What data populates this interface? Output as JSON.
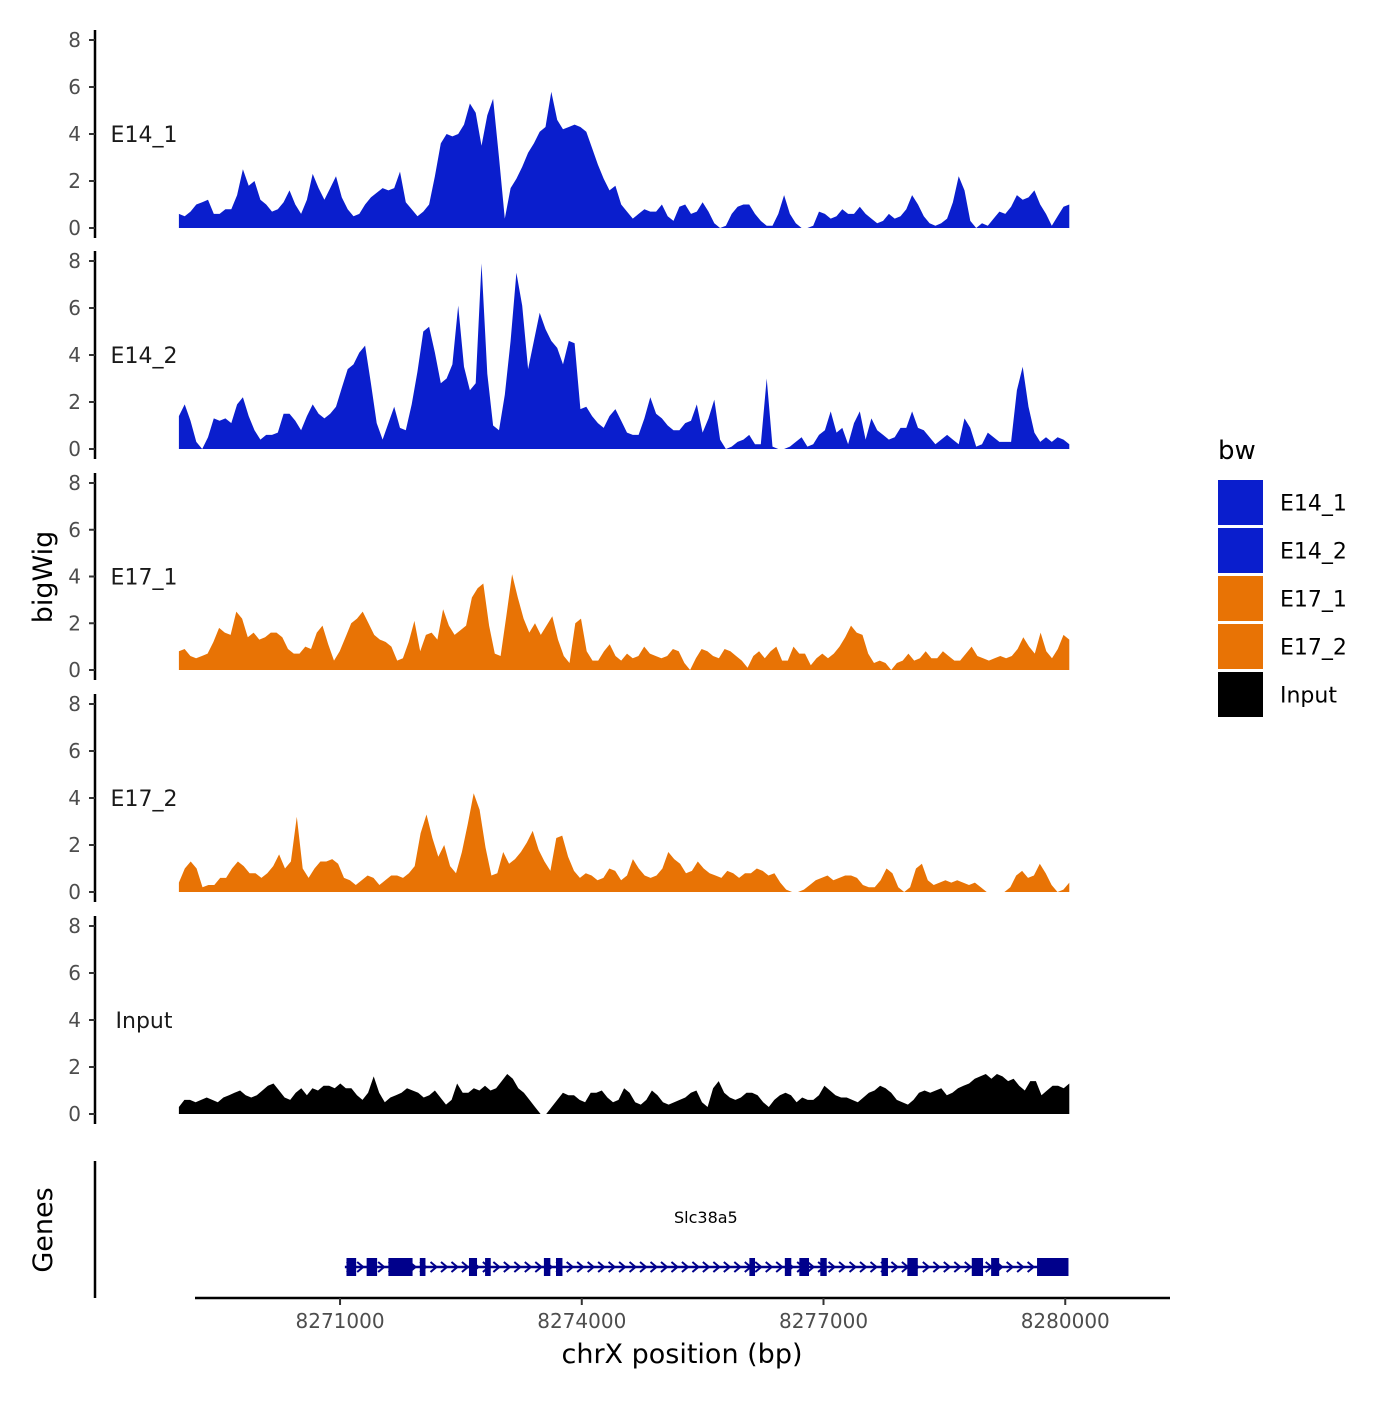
{
  "chart_data": {
    "type": "area",
    "title": "",
    "xlabel": "chrX position (bp)",
    "ylabel": "bigWig",
    "genes_label": "Genes",
    "xlim": [
      8269200,
      8281300
    ],
    "x_track_range": [
      8269000,
      8280050
    ],
    "ylim": [
      0,
      8
    ],
    "y_ticks": [
      0,
      2,
      4,
      6,
      8
    ],
    "x_ticks": [
      8271000,
      8274000,
      8277000,
      8280000
    ],
    "x_tick_labels": [
      "8271000",
      "8274000",
      "8277000",
      "8280000"
    ],
    "legend": {
      "title": "bw",
      "position": "right",
      "items": [
        {
          "label": "E14_1",
          "color": "#0A1ECD"
        },
        {
          "label": "E14_2",
          "color": "#0A1ECD"
        },
        {
          "label": "E17_1",
          "color": "#E87305"
        },
        {
          "label": "E17_2",
          "color": "#E87305"
        },
        {
          "label": "Input",
          "color": "#000000"
        }
      ]
    },
    "series": [
      {
        "name": "E14_1",
        "color": "#0A1ECD",
        "values": [
          0.6,
          0.5,
          0.7,
          1.0,
          1.1,
          1.2,
          0.6,
          0.6,
          0.8,
          0.8,
          1.4,
          2.5,
          1.8,
          2.0,
          1.2,
          1.0,
          0.7,
          0.8,
          1.1,
          1.6,
          1.0,
          0.6,
          1.2,
          2.3,
          1.7,
          1.2,
          1.7,
          2.2,
          1.3,
          0.8,
          0.5,
          0.6,
          1.0,
          1.3,
          1.5,
          1.7,
          1.6,
          1.7,
          2.4,
          1.1,
          0.8,
          0.5,
          0.7,
          1.0,
          2.2,
          3.6,
          4.0,
          3.9,
          4.0,
          4.4,
          5.3,
          4.9,
          3.5,
          4.8,
          5.5,
          3.0,
          0.4,
          1.7,
          2.1,
          2.6,
          3.2,
          3.6,
          4.1,
          4.3,
          5.8,
          4.6,
          4.2,
          4.3,
          4.4,
          4.3,
          4.1,
          3.4,
          2.7,
          2.1,
          1.6,
          1.8,
          1.0,
          0.7,
          0.4,
          0.6,
          0.8,
          0.7,
          0.7,
          1.0,
          0.5,
          0.3,
          0.9,
          1.0,
          0.6,
          0.7,
          1.1,
          0.7,
          0.2,
          0.0,
          0.1,
          0.6,
          0.9,
          1.0,
          1.0,
          0.6,
          0.3,
          0.1,
          0.1,
          0.6,
          1.4,
          0.6,
          0.2,
          0.0,
          0.0,
          0.1,
          0.7,
          0.6,
          0.4,
          0.5,
          0.8,
          0.6,
          0.6,
          0.9,
          0.6,
          0.4,
          0.2,
          0.3,
          0.6,
          0.4,
          0.5,
          0.8,
          1.4,
          1.0,
          0.5,
          0.2,
          0.1,
          0.2,
          0.4,
          1.1,
          2.2,
          1.6,
          0.3,
          0.0,
          0.2,
          0.1,
          0.4,
          0.7,
          0.6,
          0.9,
          1.4,
          1.2,
          1.3,
          1.6,
          1.0,
          0.6,
          0.1,
          0.5,
          0.9,
          1.0
        ]
      },
      {
        "name": "E14_2",
        "color": "#0A1ECD",
        "values": [
          1.4,
          1.9,
          1.2,
          0.3,
          0.0,
          0.5,
          1.3,
          1.2,
          1.3,
          1.1,
          1.9,
          2.2,
          1.4,
          0.8,
          0.4,
          0.6,
          0.6,
          0.7,
          1.5,
          1.5,
          1.2,
          0.8,
          1.4,
          1.9,
          1.5,
          1.3,
          1.5,
          1.8,
          2.6,
          3.4,
          3.6,
          4.1,
          4.4,
          2.8,
          1.1,
          0.4,
          1.1,
          1.8,
          0.9,
          0.8,
          1.9,
          3.3,
          5.0,
          5.2,
          4.1,
          2.8,
          3.0,
          3.6,
          6.1,
          3.5,
          2.5,
          2.8,
          7.9,
          3.2,
          1.0,
          0.8,
          2.3,
          4.6,
          7.5,
          6.1,
          3.4,
          4.6,
          5.8,
          5.1,
          4.6,
          4.3,
          3.6,
          4.6,
          4.5,
          1.7,
          1.8,
          1.4,
          1.1,
          0.9,
          1.4,
          1.7,
          1.2,
          0.7,
          0.6,
          0.6,
          1.3,
          2.2,
          1.5,
          1.3,
          1.0,
          0.8,
          0.8,
          1.1,
          1.2,
          1.9,
          0.7,
          1.3,
          2.1,
          0.4,
          0.0,
          0.1,
          0.3,
          0.4,
          0.6,
          0.2,
          0.2,
          3.0,
          0.1,
          0.0,
          0.0,
          0.1,
          0.3,
          0.5,
          0.1,
          0.2,
          0.6,
          0.8,
          1.6,
          0.7,
          0.9,
          0.2,
          1.1,
          1.6,
          0.4,
          1.3,
          0.8,
          0.6,
          0.4,
          0.5,
          0.9,
          0.9,
          1.6,
          0.9,
          0.8,
          0.5,
          0.2,
          0.4,
          0.6,
          0.4,
          0.2,
          1.3,
          0.9,
          0.1,
          0.2,
          0.7,
          0.5,
          0.3,
          0.3,
          0.3,
          2.5,
          3.5,
          1.8,
          0.7,
          0.3,
          0.5,
          0.3,
          0.5,
          0.4,
          0.2
        ]
      },
      {
        "name": "E17_1",
        "color": "#E87305",
        "values": [
          0.8,
          0.9,
          0.6,
          0.5,
          0.6,
          0.7,
          1.2,
          1.8,
          1.6,
          1.5,
          2.5,
          2.2,
          1.4,
          1.6,
          1.3,
          1.4,
          1.6,
          1.6,
          1.4,
          0.9,
          0.7,
          0.7,
          1.0,
          0.9,
          1.6,
          1.9,
          1.1,
          0.4,
          0.8,
          1.4,
          2.0,
          2.2,
          2.5,
          2.0,
          1.5,
          1.3,
          1.2,
          1.0,
          0.4,
          0.5,
          1.2,
          2.1,
          0.8,
          1.5,
          1.6,
          1.3,
          2.6,
          1.9,
          1.5,
          1.7,
          1.9,
          3.1,
          3.5,
          3.7,
          1.9,
          0.7,
          0.6,
          2.3,
          4.1,
          3.1,
          2.2,
          1.6,
          2.0,
          1.5,
          1.9,
          2.3,
          1.3,
          0.6,
          0.3,
          2.0,
          2.2,
          0.8,
          0.4,
          0.4,
          0.8,
          1.1,
          0.6,
          0.4,
          0.7,
          0.5,
          0.6,
          1.0,
          0.7,
          0.6,
          0.5,
          0.6,
          0.9,
          0.8,
          0.3,
          0.0,
          0.5,
          0.9,
          0.8,
          0.6,
          0.5,
          0.9,
          0.8,
          0.6,
          0.4,
          0.1,
          0.6,
          0.8,
          0.5,
          0.8,
          1.0,
          0.4,
          0.4,
          1.0,
          0.7,
          0.7,
          0.2,
          0.5,
          0.7,
          0.5,
          0.7,
          1.0,
          1.4,
          1.9,
          1.6,
          1.5,
          0.7,
          0.3,
          0.4,
          0.3,
          0.0,
          0.3,
          0.4,
          0.7,
          0.4,
          0.5,
          0.8,
          0.5,
          0.5,
          0.8,
          0.6,
          0.4,
          0.4,
          0.7,
          1.0,
          0.6,
          0.5,
          0.4,
          0.5,
          0.6,
          0.5,
          0.6,
          0.9,
          1.4,
          1.0,
          0.7,
          1.6,
          0.8,
          0.5,
          0.9,
          1.5,
          1.3
        ]
      },
      {
        "name": "E17_2",
        "color": "#E87305",
        "values": [
          0.4,
          1.0,
          1.3,
          1.0,
          0.2,
          0.3,
          0.3,
          0.6,
          0.6,
          1.0,
          1.3,
          1.1,
          0.8,
          0.8,
          0.6,
          0.8,
          1.1,
          1.6,
          1.0,
          1.3,
          3.2,
          1.0,
          0.6,
          1.0,
          1.3,
          1.3,
          1.4,
          1.2,
          0.6,
          0.5,
          0.3,
          0.5,
          0.7,
          0.6,
          0.3,
          0.5,
          0.7,
          0.7,
          0.6,
          0.8,
          1.1,
          2.5,
          3.3,
          2.3,
          1.5,
          2.0,
          1.1,
          0.8,
          1.7,
          2.9,
          4.2,
          3.5,
          1.9,
          0.7,
          0.8,
          1.7,
          1.2,
          1.4,
          1.7,
          2.1,
          2.6,
          1.8,
          1.3,
          0.9,
          2.3,
          2.4,
          1.5,
          0.9,
          0.6,
          0.8,
          0.7,
          0.5,
          0.6,
          1.0,
          0.9,
          0.5,
          0.7,
          1.4,
          1.0,
          0.7,
          0.6,
          0.7,
          1.0,
          1.7,
          1.4,
          1.2,
          0.8,
          0.9,
          1.3,
          1.0,
          0.8,
          0.7,
          0.6,
          0.9,
          0.8,
          0.6,
          0.8,
          0.8,
          1.0,
          0.9,
          0.7,
          0.8,
          0.4,
          0.1,
          0.0,
          0.0,
          0.1,
          0.3,
          0.5,
          0.6,
          0.7,
          0.5,
          0.6,
          0.7,
          0.7,
          0.6,
          0.3,
          0.2,
          0.2,
          0.5,
          1.0,
          0.8,
          0.2,
          0.0,
          0.2,
          1.0,
          1.2,
          0.5,
          0.3,
          0.4,
          0.5,
          0.4,
          0.5,
          0.4,
          0.3,
          0.4,
          0.2,
          0.0,
          0.0,
          0.0,
          0.0,
          0.2,
          0.7,
          0.9,
          0.6,
          0.7,
          1.2,
          0.8,
          0.3,
          0.0,
          0.1,
          0.4
        ]
      },
      {
        "name": "Input",
        "color": "#000000",
        "values": [
          0.3,
          0.6,
          0.6,
          0.5,
          0.6,
          0.7,
          0.6,
          0.5,
          0.7,
          0.8,
          0.9,
          1.0,
          0.8,
          0.7,
          0.8,
          1.0,
          1.2,
          1.3,
          1.0,
          0.7,
          0.6,
          0.9,
          1.1,
          0.8,
          1.1,
          1.0,
          1.2,
          1.2,
          1.1,
          1.3,
          1.1,
          1.1,
          0.8,
          0.6,
          0.9,
          1.6,
          0.9,
          0.5,
          0.7,
          0.8,
          0.9,
          1.1,
          1.0,
          0.9,
          0.7,
          0.8,
          1.0,
          0.7,
          0.4,
          0.6,
          1.3,
          0.9,
          0.9,
          1.1,
          1.0,
          1.2,
          1.0,
          1.1,
          1.4,
          1.7,
          1.5,
          1.1,
          0.9,
          0.6,
          0.3,
          0.0,
          0.0,
          0.3,
          0.6,
          0.9,
          0.8,
          0.8,
          0.6,
          0.5,
          0.9,
          0.9,
          1.0,
          0.7,
          0.5,
          0.6,
          1.1,
          0.9,
          0.5,
          0.4,
          0.6,
          1.0,
          0.8,
          0.5,
          0.4,
          0.5,
          0.6,
          0.7,
          0.9,
          1.0,
          0.5,
          0.3,
          1.1,
          1.4,
          0.9,
          0.7,
          0.6,
          0.7,
          0.9,
          0.9,
          0.8,
          0.5,
          0.3,
          0.6,
          0.8,
          0.9,
          0.8,
          0.5,
          0.7,
          0.6,
          0.6,
          0.8,
          1.2,
          1.0,
          0.8,
          0.7,
          0.7,
          0.6,
          0.5,
          0.7,
          0.9,
          1.0,
          1.2,
          1.1,
          0.9,
          0.6,
          0.5,
          0.4,
          0.6,
          0.9,
          1.0,
          0.9,
          1.0,
          1.1,
          0.8,
          0.9,
          1.1,
          1.2,
          1.3,
          1.5,
          1.6,
          1.7,
          1.5,
          1.7,
          1.6,
          1.4,
          1.5,
          1.2,
          1.0,
          1.4,
          1.4,
          0.8,
          1.0,
          1.2,
          1.2,
          1.1,
          1.3
        ]
      }
    ],
    "gene_track": {
      "gene": "Slc38a5",
      "color": "#00008B",
      "strand": "+",
      "start": 8271060,
      "end": 8280020,
      "exons": [
        [
          8271080,
          8271200
        ],
        [
          8271330,
          8271460
        ],
        [
          8271600,
          8271900
        ],
        [
          8271990,
          8272060
        ],
        [
          8272600,
          8272700
        ],
        [
          8272800,
          8272870
        ],
        [
          8273530,
          8273610
        ],
        [
          8273680,
          8273760
        ],
        [
          8276080,
          8276150
        ],
        [
          8276520,
          8276600
        ],
        [
          8276700,
          8276820
        ],
        [
          8276960,
          8277040
        ],
        [
          8277720,
          8277800
        ],
        [
          8278040,
          8278170
        ],
        [
          8278840,
          8278980
        ],
        [
          8279080,
          8279180
        ],
        [
          8279650,
          8280040
        ]
      ]
    }
  }
}
